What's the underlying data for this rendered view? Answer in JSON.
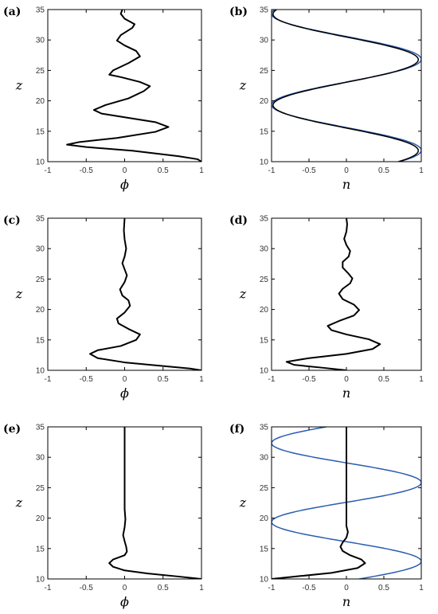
{
  "figure": {
    "colors": {
      "black_series": "#000000",
      "blue_series": "#2a5db0"
    },
    "panels": [
      {
        "label": "(a)",
        "xlabel": "ϕ",
        "ylabel": "z",
        "chart_data": {
          "type": "line",
          "xlim": [
            -1,
            1
          ],
          "ylim": [
            10,
            35
          ],
          "xticks": [
            "-1",
            "-0.5",
            "0",
            "0.5",
            "1"
          ],
          "yticks": [
            "10",
            "15",
            "20",
            "25",
            "30",
            "35"
          ],
          "series": [
            {
              "color": "#000000",
              "width": 2,
              "points": [
                [
                  1,
                  10
                ],
                [
                  0.95,
                  10.4
                ],
                [
                  0.7,
                  10.9
                ],
                [
                  0.1,
                  11.8
                ],
                [
                  -0.5,
                  12.4
                ],
                [
                  -0.75,
                  12.8
                ],
                [
                  -0.6,
                  13.2
                ],
                [
                  -0.1,
                  13.9
                ],
                [
                  0.4,
                  14.9
                ],
                [
                  0.57,
                  15.7
                ],
                [
                  0.4,
                  16.5
                ],
                [
                  0.0,
                  17.3
                ],
                [
                  -0.3,
                  17.9
                ],
                [
                  -0.4,
                  18.5
                ],
                [
                  -0.25,
                  19.3
                ],
                [
                  0.05,
                  20.4
                ],
                [
                  0.25,
                  21.6
                ],
                [
                  0.33,
                  22.4
                ],
                [
                  0.2,
                  23.1
                ],
                [
                  -0.05,
                  23.9
                ],
                [
                  -0.2,
                  24.3
                ],
                [
                  -0.15,
                  25.0
                ],
                [
                  0.05,
                  26.2
                ],
                [
                  0.2,
                  27.3
                ],
                [
                  0.15,
                  28.2
                ],
                [
                  0.0,
                  29.1
                ],
                [
                  -0.1,
                  29.9
                ],
                [
                  -0.05,
                  30.8
                ],
                [
                  0.1,
                  32.0
                ],
                [
                  0.13,
                  32.6
                ],
                [
                  0.0,
                  33.5
                ],
                [
                  -0.05,
                  34.3
                ],
                [
                  -0.03,
                  35
                ]
              ]
            }
          ]
        }
      },
      {
        "label": "(b)",
        "xlabel": "n",
        "ylabel": "z",
        "chart_data": {
          "type": "line",
          "xlim": [
            -1,
            1
          ],
          "ylim": [
            10,
            35
          ],
          "xticks": [
            "-1",
            "-0.5",
            "0",
            "0.5",
            "1"
          ],
          "yticks": [
            "10",
            "15",
            "20",
            "25",
            "30",
            "35"
          ],
          "series": [
            {
              "color": "#2a5db0",
              "width": 1.5,
              "curve": "sine",
              "a": 1.0,
              "c": 0.0,
              "b": 0.42,
              "k": -0.785,
              "z0": 10,
              "z1": 35
            },
            {
              "color": "#000000",
              "width": 1.5,
              "curve": "sine",
              "a": 0.97,
              "c": -0.01,
              "b": 0.42,
              "k": -0.76,
              "z0": 10,
              "z1": 35
            }
          ]
        }
      },
      {
        "label": "(c)",
        "xlabel": "ϕ",
        "ylabel": "z",
        "chart_data": {
          "type": "line",
          "xlim": [
            -1,
            1
          ],
          "ylim": [
            10,
            35
          ],
          "xticks": [
            "-1",
            "-0.5",
            "0",
            "0.5",
            "1"
          ],
          "yticks": [
            "10",
            "15",
            "20",
            "25",
            "30",
            "35"
          ],
          "series": [
            {
              "color": "#000000",
              "width": 2,
              "points": [
                [
                  1,
                  10
                ],
                [
                  0.85,
                  10.3
                ],
                [
                  0.5,
                  10.7
                ],
                [
                  0.0,
                  11.3
                ],
                [
                  -0.35,
                  12.0
                ],
                [
                  -0.45,
                  12.7
                ],
                [
                  -0.35,
                  13.3
                ],
                [
                  -0.05,
                  14.0
                ],
                [
                  0.15,
                  15.0
                ],
                [
                  0.2,
                  15.9
                ],
                [
                  0.05,
                  16.8
                ],
                [
                  -0.08,
                  17.7
                ],
                [
                  -0.1,
                  18.5
                ],
                [
                  0.0,
                  19.5
                ],
                [
                  0.07,
                  20.6
                ],
                [
                  0.05,
                  21.5
                ],
                [
                  -0.03,
                  22.3
                ],
                [
                  -0.06,
                  23.3
                ],
                [
                  0.0,
                  24.5
                ],
                [
                  0.03,
                  25.6
                ],
                [
                  0.0,
                  26.6
                ],
                [
                  -0.03,
                  27.6
                ],
                [
                  0.0,
                  28.7
                ],
                [
                  0.02,
                  30.0
                ],
                [
                  0.0,
                  31.5
                ],
                [
                  -0.01,
                  33
                ],
                [
                  0,
                  35
                ]
              ]
            }
          ]
        }
      },
      {
        "label": "(d)",
        "xlabel": "n",
        "ylabel": "z",
        "chart_data": {
          "type": "line",
          "xlim": [
            -1,
            1
          ],
          "ylim": [
            10,
            35
          ],
          "xticks": [
            "-1",
            "-0.5",
            "0",
            "0.5",
            "1"
          ],
          "yticks": [
            "10",
            "15",
            "20",
            "25",
            "30",
            "35"
          ],
          "series": [
            {
              "color": "#000000",
              "width": 2,
              "points": [
                [
                  0,
                  10
                ],
                [
                  -0.3,
                  10.4
                ],
                [
                  -0.7,
                  10.9
                ],
                [
                  -0.8,
                  11.4
                ],
                [
                  -0.5,
                  12.0
                ],
                [
                  0.0,
                  12.7
                ],
                [
                  0.35,
                  13.5
                ],
                [
                  0.45,
                  14.3
                ],
                [
                  0.3,
                  15.1
                ],
                [
                  0.0,
                  15.9
                ],
                [
                  -0.2,
                  16.6
                ],
                [
                  -0.25,
                  17.3
                ],
                [
                  -0.1,
                  18.1
                ],
                [
                  0.1,
                  19.0
                ],
                [
                  0.17,
                  19.9
                ],
                [
                  0.1,
                  20.8
                ],
                [
                  -0.05,
                  21.7
                ],
                [
                  -0.1,
                  22.6
                ],
                [
                  -0.05,
                  23.4
                ],
                [
                  0.05,
                  24.3
                ],
                [
                  0.08,
                  25.1
                ],
                [
                  0.02,
                  26.0
                ],
                [
                  -0.05,
                  26.9
                ],
                [
                  -0.05,
                  27.8
                ],
                [
                  0.03,
                  28.7
                ],
                [
                  0.05,
                  29.6
                ],
                [
                  0.0,
                  30.6
                ],
                [
                  -0.03,
                  31.6
                ],
                [
                  0.0,
                  32.8
                ],
                [
                  0.01,
                  34
                ],
                [
                  0,
                  35
                ]
              ]
            }
          ]
        }
      },
      {
        "label": "(e)",
        "xlabel": "ϕ",
        "ylabel": "z",
        "chart_data": {
          "type": "line",
          "xlim": [
            -1,
            1
          ],
          "ylim": [
            10,
            35
          ],
          "xticks": [
            "-1",
            "-0.5",
            "0",
            "0.5",
            "1"
          ],
          "yticks": [
            "10",
            "15",
            "20",
            "25",
            "30",
            "35"
          ],
          "series": [
            {
              "color": "#000000",
              "width": 2,
              "points": [
                [
                  1,
                  10
                ],
                [
                  0.7,
                  10.4
                ],
                [
                  0.3,
                  10.9
                ],
                [
                  0.0,
                  11.4
                ],
                [
                  -0.15,
                  12.0
                ],
                [
                  -0.2,
                  12.6
                ],
                [
                  -0.15,
                  13.2
                ],
                [
                  0.0,
                  13.9
                ],
                [
                  0.03,
                  14.5
                ],
                [
                  0.02,
                  15.3
                ],
                [
                  0.0,
                  16.2
                ],
                [
                  -0.02,
                  17.2
                ],
                [
                  0.0,
                  18.5
                ],
                [
                  0.01,
                  19.8
                ],
                [
                  0.0,
                  21.5
                ],
                [
                  0,
                  24
                ],
                [
                  0,
                  27
                ],
                [
                  0,
                  30
                ],
                [
                  0,
                  35
                ]
              ]
            }
          ]
        }
      },
      {
        "label": "(f)",
        "xlabel": "n",
        "ylabel": "z",
        "chart_data": {
          "type": "line",
          "xlim": [
            -1,
            1
          ],
          "ylim": [
            10,
            35
          ],
          "xticks": [
            "-1",
            "-0.5",
            "0",
            "0.5",
            "1"
          ],
          "yticks": [
            "10",
            "15",
            "20",
            "25",
            "30",
            "35"
          ],
          "series": [
            {
              "color": "#2a5db0",
              "width": 1.5,
              "curve": "sine",
              "a": 1.0,
              "c": 0.0,
              "b": 0.485,
              "k": -1.4,
              "z0": 10,
              "z1": 35
            },
            {
              "color": "#000000",
              "width": 2,
              "points": [
                [
                  -1,
                  10
                ],
                [
                  -0.6,
                  10.5
                ],
                [
                  -0.2,
                  11.0
                ],
                [
                  0.15,
                  11.8
                ],
                [
                  0.25,
                  12.6
                ],
                [
                  0.2,
                  13.2
                ],
                [
                  0.05,
                  13.9
                ],
                [
                  -0.05,
                  14.6
                ],
                [
                  -0.08,
                  15.3
                ],
                [
                  -0.05,
                  16.0
                ],
                [
                  0.0,
                  16.8
                ],
                [
                  0.02,
                  17.7
                ],
                [
                  0.0,
                  18.7
                ],
                [
                  0.0,
                  20
                ],
                [
                  0.0,
                  22
                ],
                [
                  0,
                  25
                ],
                [
                  0,
                  28
                ],
                [
                  0,
                  32
                ],
                [
                  0,
                  35
                ]
              ]
            }
          ]
        }
      }
    ]
  }
}
